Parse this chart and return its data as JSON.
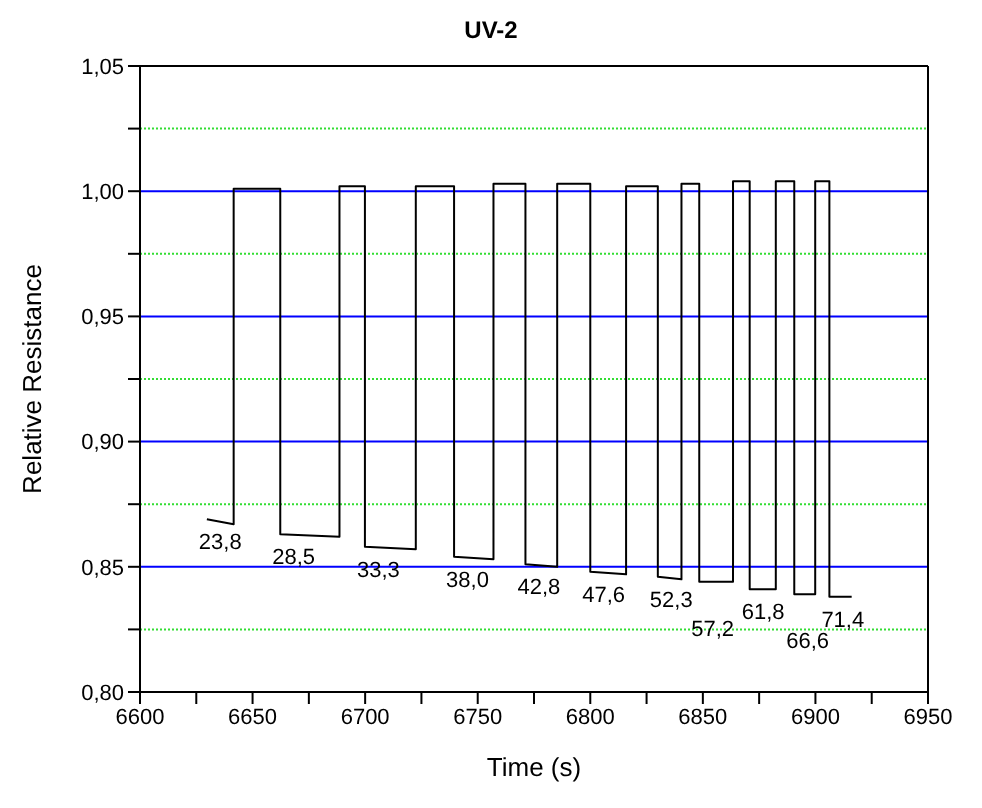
{
  "chart_data": {
    "type": "line",
    "title": "UV-2",
    "xlabel": "Time (s)",
    "ylabel": "Relative Resistance",
    "xlim": [
      6600,
      6950
    ],
    "xticks": [
      6600,
      {
        "value": 6625,
        "label": null
      },
      6650,
      {
        "value": 6675,
        "label": null
      },
      6700,
      {
        "value": 6725,
        "label": null
      },
      6750,
      {
        "value": 6775,
        "label": null
      },
      6800,
      {
        "value": 6825,
        "label": null
      },
      6850,
      {
        "value": 6875,
        "label": null
      },
      6900,
      {
        "value": 6925,
        "label": null
      },
      6950
    ],
    "ylim": [
      0.8,
      1.05
    ],
    "yticks": [
      {
        "value": 0.8,
        "label": "0,80"
      },
      {
        "value": 0.825,
        "label": null
      },
      {
        "value": 0.85,
        "label": "0,85"
      },
      {
        "value": 0.875,
        "label": null
      },
      {
        "value": 0.9,
        "label": "0,90"
      },
      {
        "value": 0.925,
        "label": null
      },
      {
        "value": 0.95,
        "label": "0,95"
      },
      {
        "value": 0.975,
        "label": null
      },
      {
        "value": 1.0,
        "label": "1,00"
      },
      {
        "value": 1.025,
        "label": null
      },
      {
        "value": 1.05,
        "label": "1,05"
      }
    ],
    "grid": "y",
    "marker": "none",
    "line_style": "solid",
    "series": [
      {
        "color": "#000000",
        "x": [
          6629.7,
          6641.6,
          6641.6,
          6662.3,
          6662.3,
          6688.6,
          6688.6,
          6699.9,
          6699.9,
          6722.5,
          6722.5,
          6739.5,
          6739.5,
          6757,
          6757,
          6771.2,
          6771.2,
          6785.3,
          6785.3,
          6800,
          6800,
          6815.9,
          6815.9,
          6830,
          6830,
          6840.5,
          6840.5,
          6848.4,
          6848.4,
          6863.4,
          6863.4,
          6870.8,
          6870.8,
          6882.4,
          6882.4,
          6890.6,
          6890.6,
          6899.9,
          6899.9,
          6906.2,
          6906.2,
          6916.1
        ],
        "values": [
          0.869,
          0.867,
          1.001,
          1.001,
          0.863,
          0.862,
          1.002,
          1.002,
          0.858,
          0.857,
          1.002,
          1.002,
          0.854,
          0.853,
          1.003,
          1.003,
          0.851,
          0.85,
          1.003,
          1.003,
          0.848,
          0.847,
          1.002,
          1.002,
          0.846,
          0.845,
          1.003,
          1.003,
          0.844,
          0.844,
          1.004,
          1.004,
          0.841,
          0.841,
          1.004,
          1.004,
          0.839,
          0.839,
          1.004,
          1.004,
          0.838,
          0.838
        ]
      }
    ],
    "annotations": [
      {
        "text": "23,8",
        "x": 6629.7,
        "y": 0.869
      },
      {
        "text": "28,5",
        "x": 6662.3,
        "y": 0.863
      },
      {
        "text": "33,3",
        "x": 6699.9,
        "y": 0.858
      },
      {
        "text": "38,0",
        "x": 6739.5,
        "y": 0.854
      },
      {
        "text": "42,8",
        "x": 6771.2,
        "y": 0.851
      },
      {
        "text": "47,6",
        "x": 6800,
        "y": 0.848
      },
      {
        "text": "52,3",
        "x": 6830,
        "y": 0.846
      },
      {
        "text": "57,2",
        "x": 6848.4,
        "y": 0.844
      },
      {
        "text": "61,8",
        "x": 6870.8,
        "y": 0.841
      },
      {
        "text": "66,6",
        "x": 6890.6,
        "y": 0.839
      },
      {
        "text": "71,4",
        "x": 6906.2,
        "y": 0.838
      }
    ]
  }
}
